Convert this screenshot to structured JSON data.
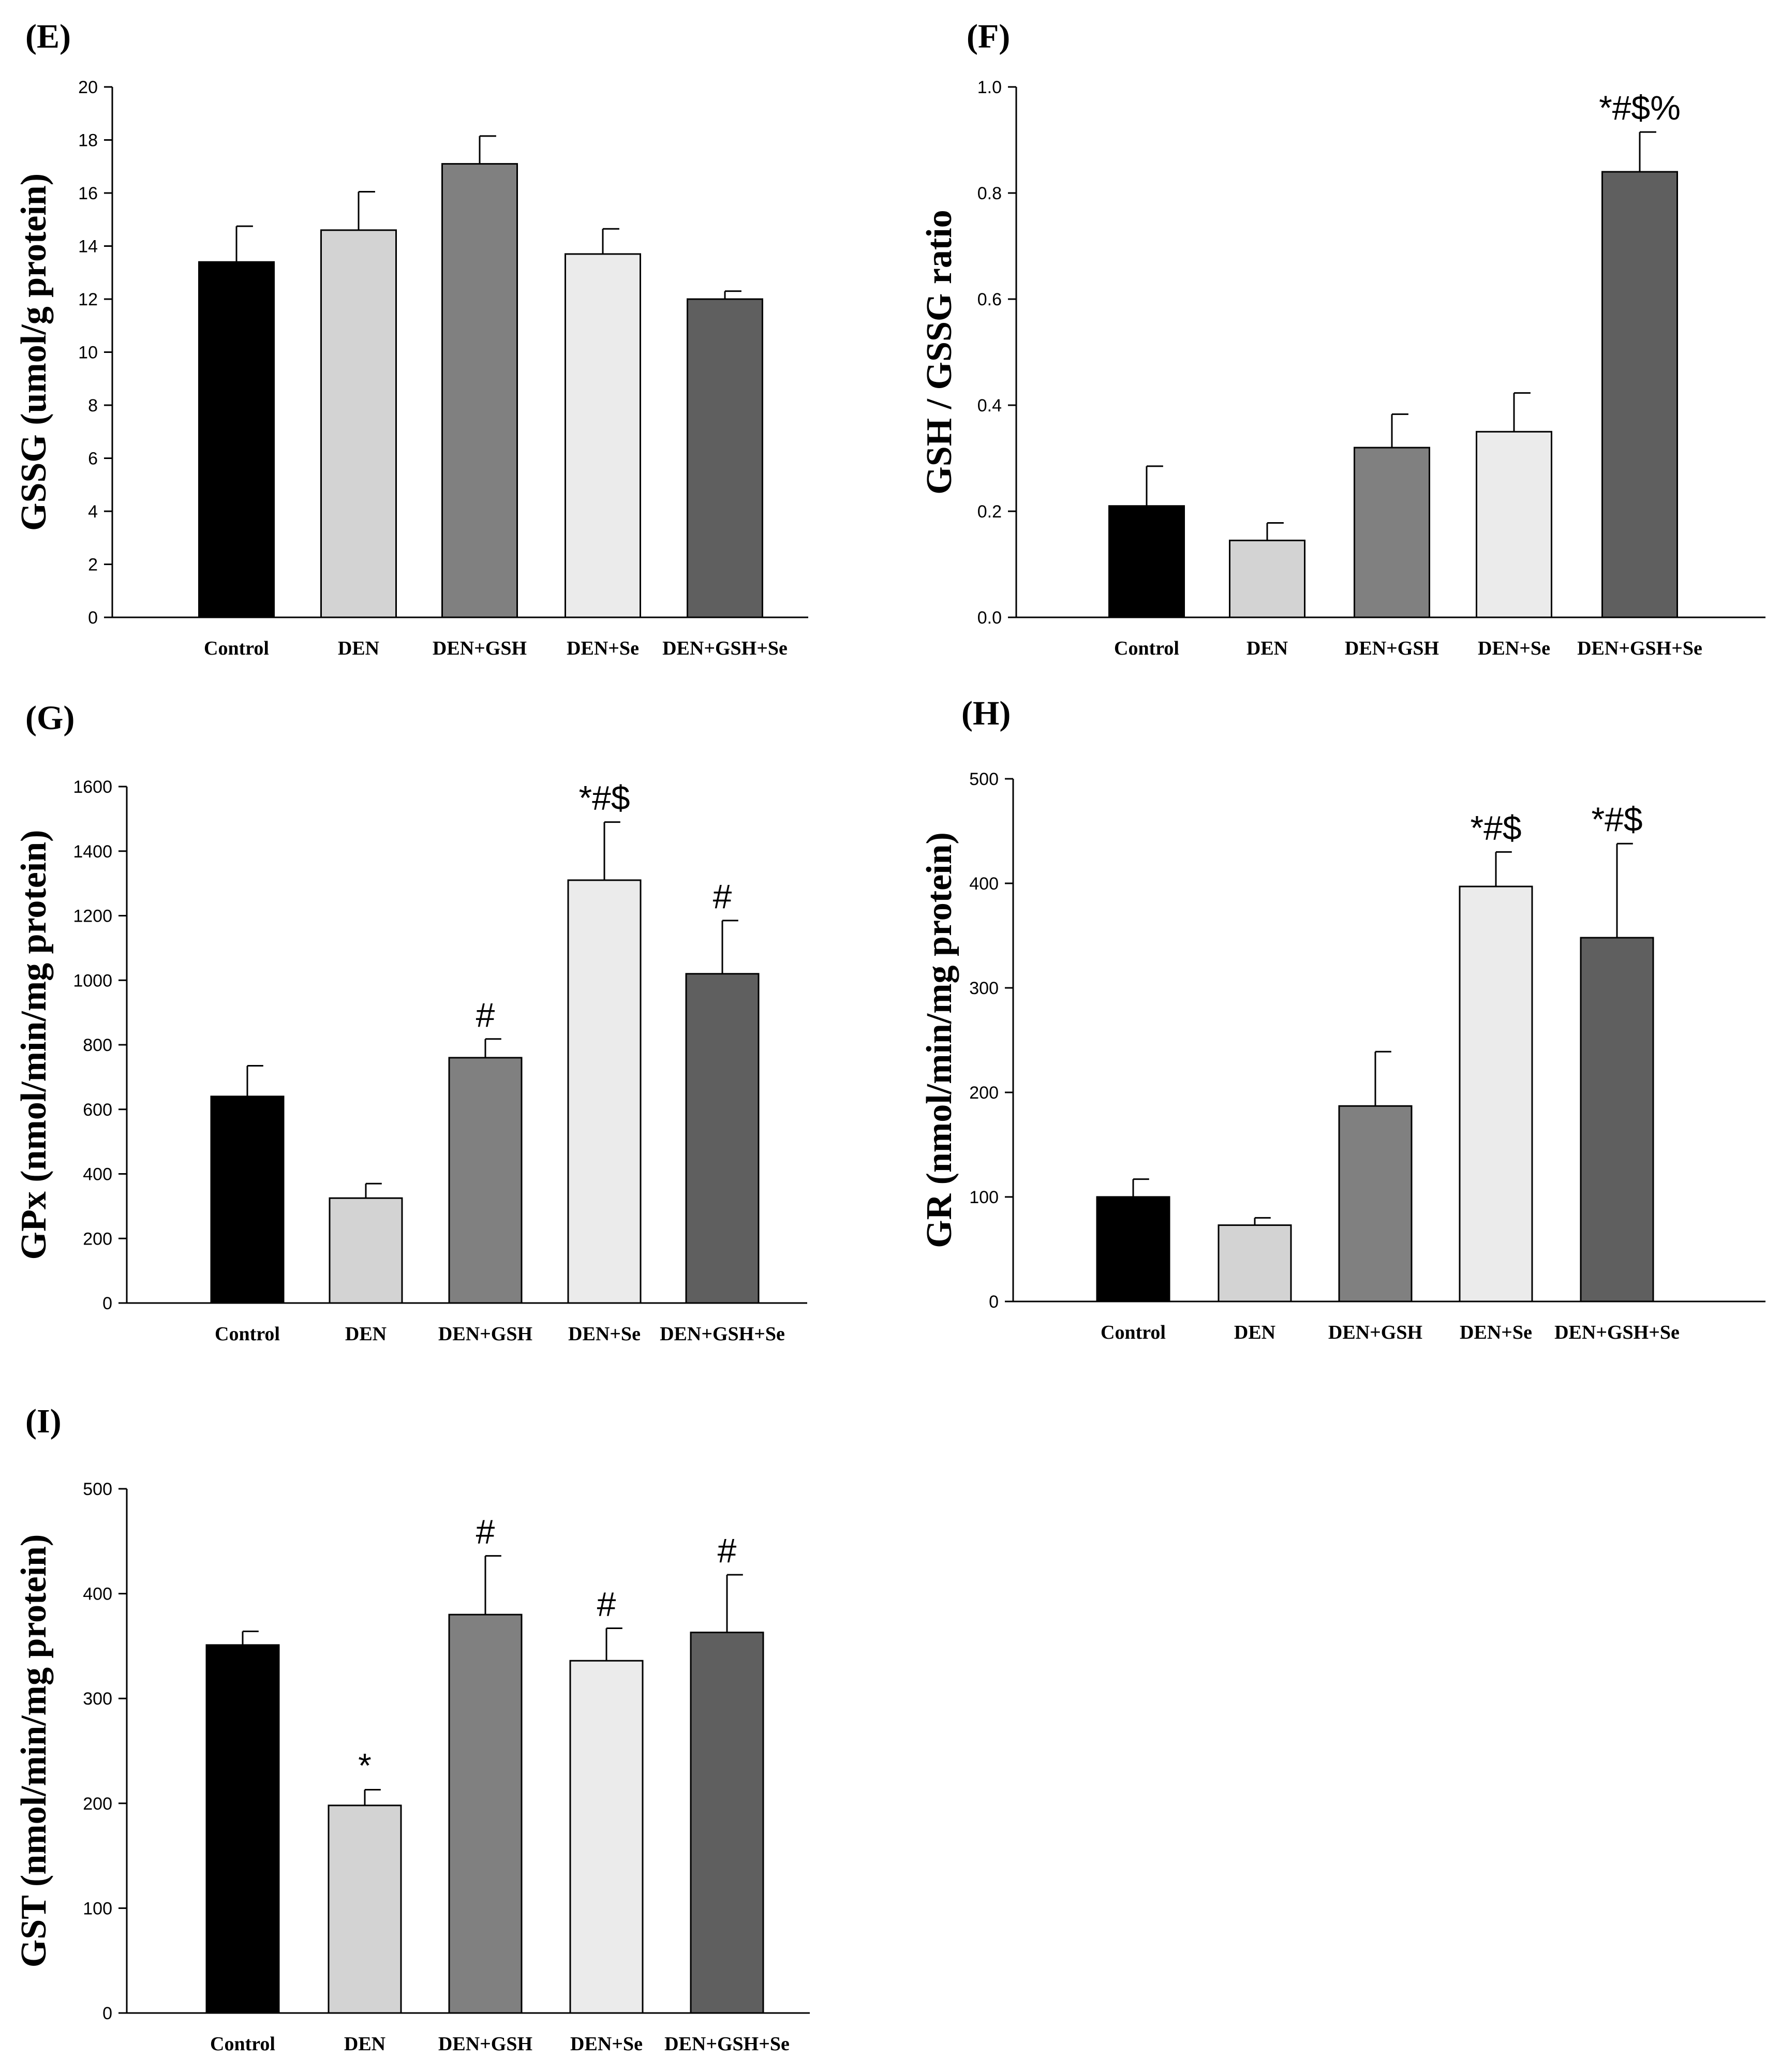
{
  "chart_data": [
    {
      "id": "E",
      "type": "bar",
      "title": "(E)",
      "ylabel": "GSSG (umol/g protein)",
      "xlabel": "",
      "categories": [
        "Control",
        "DEN",
        "DEN+GSH",
        "DEN+Se",
        "DEN+GSH+Se"
      ],
      "values": [
        13.4,
        14.6,
        17.1,
        13.7,
        12.0
      ],
      "errors": [
        1.35,
        1.45,
        1.05,
        0.95,
        0.3
      ],
      "annotations": [
        "",
        "",
        "",
        "",
        ""
      ],
      "ylim": [
        0,
        20
      ],
      "yticks": [
        0,
        2,
        4,
        6,
        8,
        10,
        12,
        14,
        16,
        18,
        20
      ],
      "ytick_labels": [
        "0",
        "2",
        "4",
        "6",
        "8",
        "10",
        "12",
        "14",
        "16",
        "18",
        "20"
      ],
      "colors": [
        "#000000",
        "#d3d3d3",
        "#808080",
        "#ebebeb",
        "#5f5f5f"
      ],
      "grid": false
    },
    {
      "id": "F",
      "type": "bar",
      "title": "(F)",
      "ylabel": "GSH / GSSG ratio",
      "xlabel": "",
      "categories": [
        "Control",
        "DEN",
        "DEN+GSH",
        "DEN+Se",
        "DEN+GSH+Se"
      ],
      "values": [
        0.21,
        0.145,
        0.32,
        0.35,
        0.84
      ],
      "errors": [
        0.075,
        0.033,
        0.063,
        0.073,
        0.075
      ],
      "annotations": [
        "",
        "",
        "",
        "",
        "*#$%"
      ],
      "ylim": [
        0,
        1.0
      ],
      "yticks": [
        0,
        0.2,
        0.4,
        0.6,
        0.8,
        1.0
      ],
      "ytick_labels": [
        "0.0",
        "0.2",
        "0.4",
        "0.6",
        "0.8",
        "1.0"
      ],
      "colors": [
        "#000000",
        "#d3d3d3",
        "#808080",
        "#ebebeb",
        "#5f5f5f"
      ],
      "grid": false
    },
    {
      "id": "G",
      "type": "bar",
      "title": "(G)",
      "ylabel": "GPx (nmol/min/mg protein)",
      "xlabel": "",
      "categories": [
        "Control",
        "DEN",
        "DEN+GSH",
        "DEN+Se",
        "DEN+GSH+Se"
      ],
      "values": [
        640,
        325,
        760,
        1310,
        1020
      ],
      "errors": [
        95,
        45,
        58,
        180,
        165
      ],
      "annotations": [
        "",
        "",
        "#",
        "*#$",
        "#"
      ],
      "ylim": [
        0,
        1600
      ],
      "yticks": [
        0,
        200,
        400,
        600,
        800,
        1000,
        1200,
        1400,
        1600
      ],
      "ytick_labels": [
        "0",
        "200",
        "400",
        "600",
        "800",
        "1000",
        "1200",
        "1400",
        "1600"
      ],
      "colors": [
        "#000000",
        "#d3d3d3",
        "#808080",
        "#ebebeb",
        "#5f5f5f"
      ],
      "grid": false
    },
    {
      "id": "H",
      "type": "bar",
      "title": "(H)",
      "ylabel": "GR (nmol/min/mg protein)",
      "xlabel": "",
      "categories": [
        "Control",
        "DEN",
        "DEN+GSH",
        "DEN+Se",
        "DEN+GSH+Se"
      ],
      "values": [
        100,
        73,
        187,
        397,
        348
      ],
      "errors": [
        17,
        7,
        52,
        33,
        90
      ],
      "annotations": [
        "",
        "",
        "",
        "*#$",
        "*#$"
      ],
      "ylim": [
        0,
        500
      ],
      "yticks": [
        0,
        100,
        200,
        300,
        400,
        500
      ],
      "ytick_labels": [
        "0",
        "100",
        "200",
        "300",
        "400",
        "500"
      ],
      "colors": [
        "#000000",
        "#d3d3d3",
        "#808080",
        "#ebebeb",
        "#5f5f5f"
      ],
      "grid": false
    },
    {
      "id": "I",
      "type": "bar",
      "title": "(I)",
      "ylabel": "GST (nmol/min/mg protein)",
      "xlabel": "",
      "categories": [
        "Control",
        "DEN",
        "DEN+GSH",
        "DEN+Se",
        "DEN+GSH+Se"
      ],
      "values": [
        351,
        198,
        380,
        336,
        363
      ],
      "errors": [
        13,
        15,
        56,
        31,
        55
      ],
      "annotations": [
        "",
        "*",
        "#",
        "#",
        "#"
      ],
      "ylim": [
        0,
        500
      ],
      "yticks": [
        0,
        100,
        200,
        300,
        400,
        500
      ],
      "ytick_labels": [
        "0",
        "100",
        "200",
        "300",
        "400",
        "500"
      ],
      "colors": [
        "#000000",
        "#d3d3d3",
        "#808080",
        "#ebebeb",
        "#5f5f5f"
      ],
      "grid": false
    }
  ]
}
